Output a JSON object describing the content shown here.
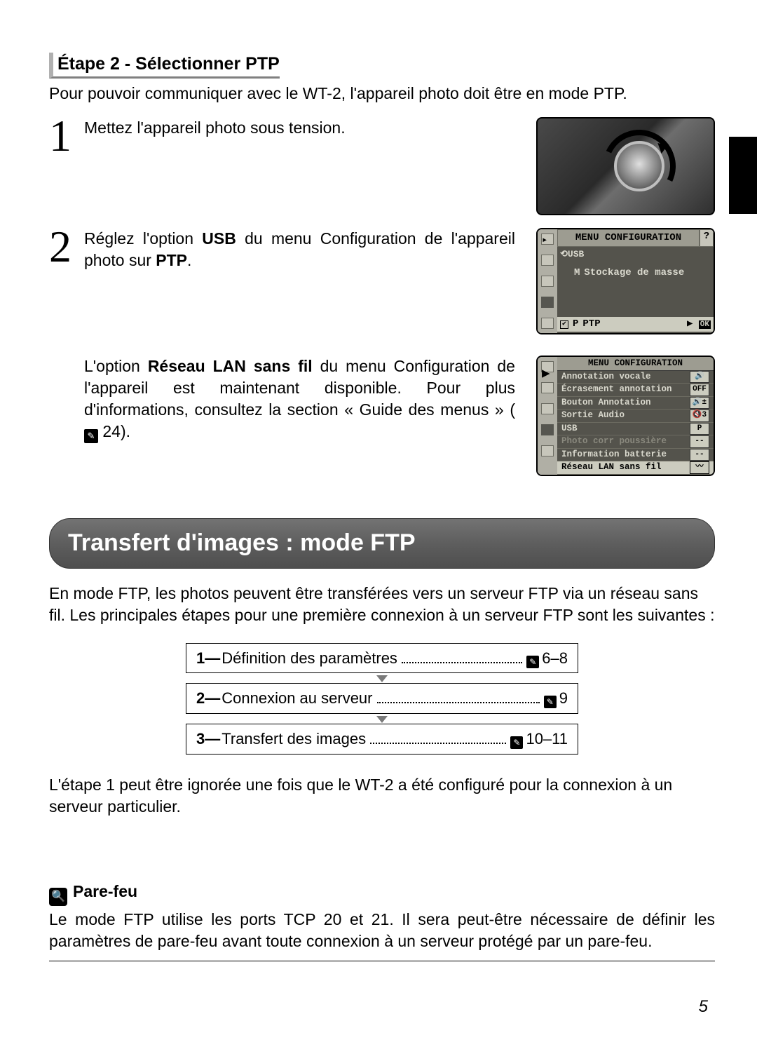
{
  "colors": {
    "text": "#000000",
    "banner_gradient_top": "#737373",
    "banner_gradient_bottom": "#4e4e4e",
    "banner_text": "#ffffff",
    "menu_bg": "#b0afa5",
    "menu_dark": "#54534c",
    "menu_highlight": "#ccccbf",
    "step_border": "#000000",
    "arrow": "#7a7a7a"
  },
  "page_number": "5",
  "step2": {
    "heading": "Étape 2 - Sélectionner PTP",
    "intro": "Pour pouvoir communiquer avec le WT-2, l'appareil photo doit être en mode PTP.",
    "item1_num": "1",
    "item1_text": "Mettez l'appareil photo sous tension.",
    "item2_num": "2",
    "item2_before": "Réglez l'option ",
    "item2_bold1": "USB",
    "item2_mid": " du menu Configuration de l'appareil photo sur ",
    "item2_bold2": "PTP",
    "item2_after": ".",
    "item3_before": "L'option ",
    "item3_bold": "Réseau LAN sans fil",
    "item3_after": " du menu Configuration de l'appareil est maintenant disponible. Pour plus d'informations, consultez la section « Guide des menus » (",
    "item3_pageref": " 24)."
  },
  "menu1": {
    "title": "MENU CONFIGURATION",
    "help": "?",
    "usb_label": "⟲USB",
    "optM_letter": "M",
    "optM_text": "Stockage de masse",
    "optP_letter": "P",
    "optP_text": "PTP",
    "ok_prefix": "▶",
    "ok": "OK"
  },
  "menu2": {
    "title": "MENU CONFIGURATION",
    "lines": [
      {
        "label": "Annotation vocale",
        "val": "🔊"
      },
      {
        "label": "Écrasement annotation",
        "val": "OFF"
      },
      {
        "label": "Bouton Annotation",
        "val": "🔊±"
      },
      {
        "label": "Sortie Audio",
        "val": "🔇3"
      },
      {
        "label": "USB",
        "val": "P"
      },
      {
        "label": "Photo corr poussière",
        "val": "--",
        "dim": true
      },
      {
        "label": "Information batterie",
        "val": "--"
      },
      {
        "label": "Réseau LAN sans fil",
        "val": "〰",
        "sel": true
      }
    ]
  },
  "ftp": {
    "banner": "Transfert d'images : mode FTP",
    "intro": "En mode FTP, les photos peuvent être transférées vers un serveur FTP via un réseau sans fil. Les principales étapes pour une première connexion à un serveur FTP sont les suivantes :",
    "steps": [
      {
        "n": "1",
        "label": "Définition des paramètres",
        "pages": "6–8"
      },
      {
        "n": "2",
        "label": "Connexion au serveur",
        "pages": "9"
      },
      {
        "n": "3",
        "label": "Transfert des images",
        "pages": "10–11"
      }
    ],
    "note": "L'étape 1 peut être ignorée une fois que le WT-2 a été configuré pour la connexion à un serveur particulier."
  },
  "parefeu": {
    "heading": "Pare-feu",
    "body": "Le mode FTP utilise les ports TCP 20 et 21. Il sera peut-être nécessaire de définir les paramètres de pare-feu avant toute connexion à un serveur protégé par un pare-feu."
  }
}
